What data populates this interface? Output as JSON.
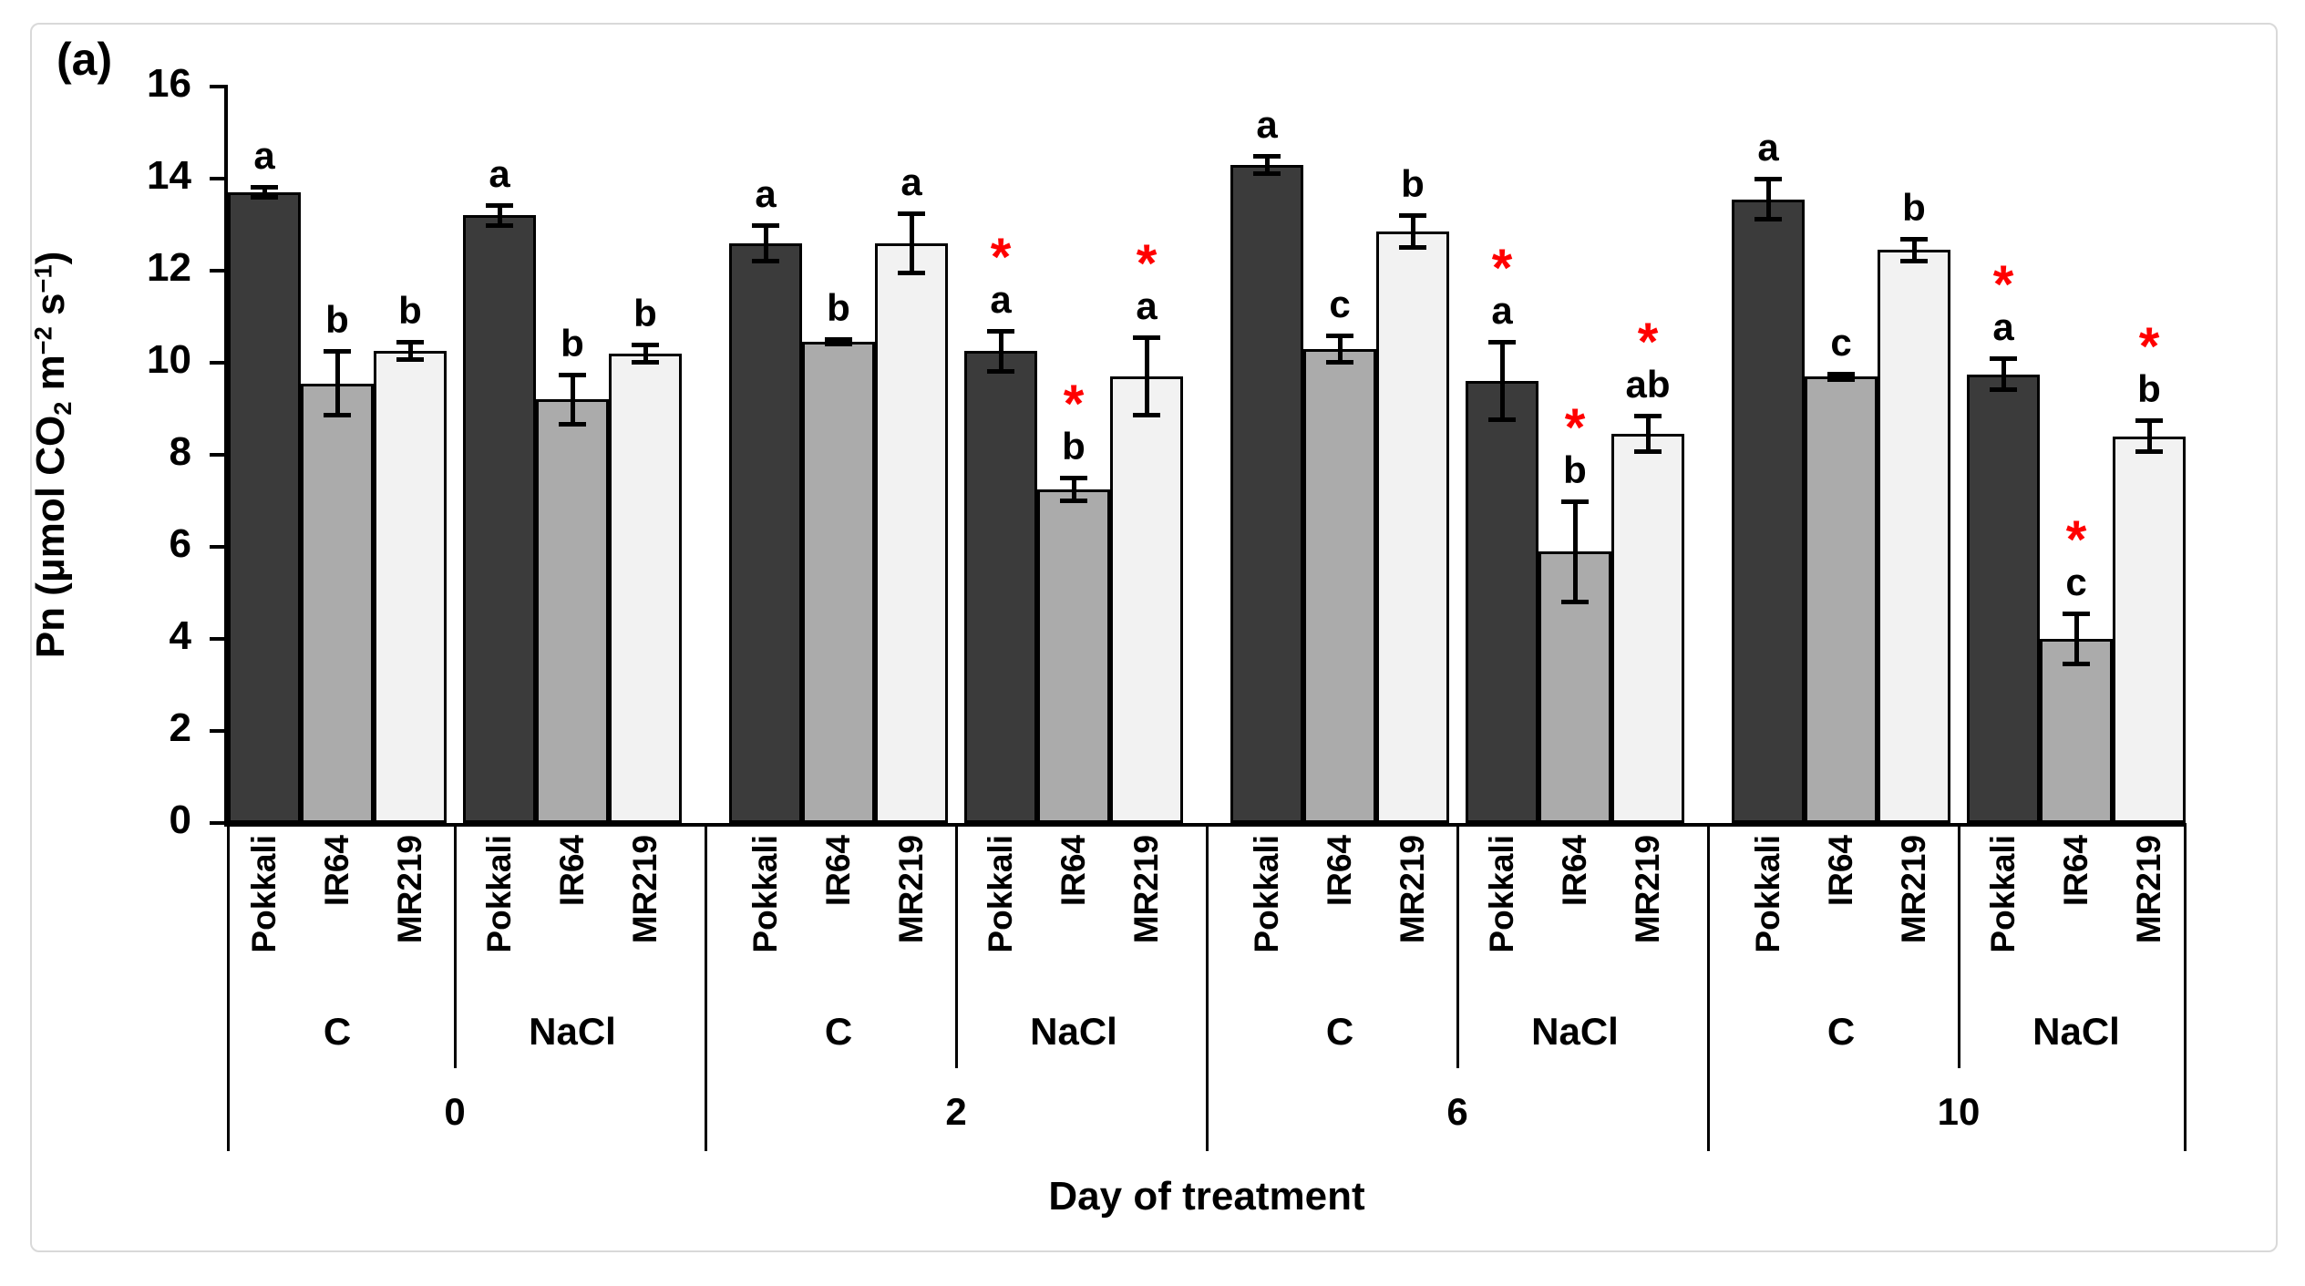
{
  "panel_label": "(a)",
  "y_title": {
    "pre": "Pn (μmol CO",
    "sub": "2",
    "mid": " m",
    "sup1": "−2",
    "mid2": " s",
    "sup2": "−1",
    "post": ")"
  },
  "x_axis_title": "Day of treatment",
  "significance_marker": "*",
  "chart_data": {
    "type": "bar",
    "title": "",
    "xlabel": "Day of treatment",
    "ylabel": "Pn (μmol CO2 m−2 s−1)",
    "ylim": [
      0,
      16
    ],
    "y_ticks": [
      0,
      2,
      4,
      6,
      8,
      10,
      12,
      14,
      16
    ],
    "grid": false,
    "legend": "none",
    "varieties": [
      "Pokkali",
      "IR64",
      "MR219"
    ],
    "colors": {
      "Pokkali": "#3b3b3b",
      "IR64": "#ababab",
      "MR219": "#f2f2f2"
    },
    "bar_outline": "#000000",
    "error_bar_color": "#000000",
    "marker_color": "#ff0000",
    "groups": [
      {
        "day": "0",
        "treatments": [
          {
            "name": "C",
            "bars": [
              {
                "variety": "Pokkali",
                "value": 13.7,
                "error": 0.12,
                "letter": "a",
                "star": false
              },
              {
                "variety": "IR64",
                "value": 9.55,
                "error": 0.7,
                "letter": "b",
                "star": false
              },
              {
                "variety": "MR219",
                "value": 10.25,
                "error": 0.2,
                "letter": "b",
                "star": false
              }
            ]
          },
          {
            "name": "NaCl",
            "bars": [
              {
                "variety": "Pokkali",
                "value": 13.2,
                "error": 0.22,
                "letter": "a",
                "star": false
              },
              {
                "variety": "IR64",
                "value": 9.2,
                "error": 0.55,
                "letter": "b",
                "star": false
              },
              {
                "variety": "MR219",
                "value": 10.2,
                "error": 0.2,
                "letter": "b",
                "star": false
              }
            ]
          }
        ]
      },
      {
        "day": "2",
        "treatments": [
          {
            "name": "C",
            "bars": [
              {
                "variety": "Pokkali",
                "value": 12.6,
                "error": 0.4,
                "letter": "a",
                "star": false
              },
              {
                "variety": "IR64",
                "value": 10.45,
                "error": 0.06,
                "letter": "b",
                "star": false
              },
              {
                "variety": "MR219",
                "value": 12.6,
                "error": 0.65,
                "letter": "a",
                "star": false
              }
            ]
          },
          {
            "name": "NaCl",
            "bars": [
              {
                "variety": "Pokkali",
                "value": 10.25,
                "error": 0.45,
                "letter": "a",
                "star": true
              },
              {
                "variety": "IR64",
                "value": 7.25,
                "error": 0.25,
                "letter": "b",
                "star": true
              },
              {
                "variety": "MR219",
                "value": 9.7,
                "error": 0.85,
                "letter": "a",
                "star": true
              }
            ]
          }
        ]
      },
      {
        "day": "6",
        "treatments": [
          {
            "name": "C",
            "bars": [
              {
                "variety": "Pokkali",
                "value": 14.3,
                "error": 0.2,
                "letter": "a",
                "star": false
              },
              {
                "variety": "IR64",
                "value": 10.3,
                "error": 0.3,
                "letter": "c",
                "star": false
              },
              {
                "variety": "MR219",
                "value": 12.85,
                "error": 0.35,
                "letter": "b",
                "star": false
              }
            ]
          },
          {
            "name": "NaCl",
            "bars": [
              {
                "variety": "Pokkali",
                "value": 9.6,
                "error": 0.85,
                "letter": "a",
                "star": true
              },
              {
                "variety": "IR64",
                "value": 5.9,
                "error": 1.1,
                "letter": "b",
                "star": true
              },
              {
                "variety": "MR219",
                "value": 8.45,
                "error": 0.4,
                "letter": "ab",
                "star": true
              }
            ]
          }
        ]
      },
      {
        "day": "10",
        "treatments": [
          {
            "name": "C",
            "bars": [
              {
                "variety": "Pokkali",
                "value": 13.55,
                "error": 0.45,
                "letter": "a",
                "star": false
              },
              {
                "variety": "IR64",
                "value": 9.7,
                "error": 0.07,
                "letter": "c",
                "star": false
              },
              {
                "variety": "MR219",
                "value": 12.45,
                "error": 0.25,
                "letter": "b",
                "star": false
              }
            ]
          },
          {
            "name": "NaCl",
            "bars": [
              {
                "variety": "Pokkali",
                "value": 9.75,
                "error": 0.35,
                "letter": "a",
                "star": true
              },
              {
                "variety": "IR64",
                "value": 4.0,
                "error": 0.55,
                "letter": "c",
                "star": true
              },
              {
                "variety": "MR219",
                "value": 8.4,
                "error": 0.35,
                "letter": "b",
                "star": true
              }
            ]
          }
        ]
      }
    ]
  }
}
